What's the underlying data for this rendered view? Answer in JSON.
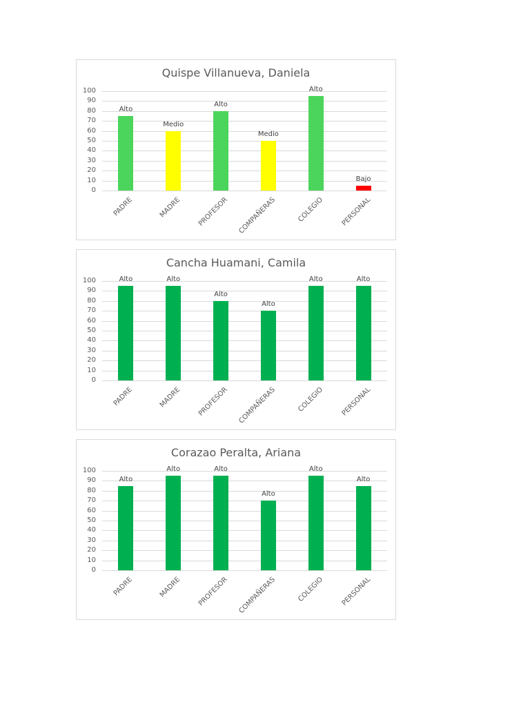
{
  "chart_data": [
    {
      "type": "bar",
      "title": "Quispe Villanueva, Daniela",
      "categories": [
        "PADRE",
        "MADRE",
        "PROFESOR",
        "COMPAÑERAS",
        "COLEGIO",
        "PERSONAL"
      ],
      "values": [
        75,
        60,
        80,
        50,
        95,
        5
      ],
      "data_labels": [
        "Alto",
        "Medio",
        "Alto",
        "Medio",
        "Alto",
        "Bajo"
      ],
      "bar_colors": [
        "#4CD55C",
        "#FFFF00",
        "#4CD55C",
        "#FFFF00",
        "#4CD55C",
        "#FF0000"
      ],
      "xlabel": "",
      "ylabel": "",
      "ylim": [
        0,
        100
      ],
      "yticks": [
        0,
        10,
        20,
        30,
        40,
        50,
        60,
        70,
        80,
        90,
        100
      ],
      "grid": true,
      "legend": "none"
    },
    {
      "type": "bar",
      "title": "Cancha Huamani, Camila",
      "categories": [
        "PADRE",
        "MADRE",
        "PROFESOR",
        "COMPAÑERAS",
        "COLEGIO",
        "PERSONAL"
      ],
      "values": [
        95,
        95,
        80,
        70,
        95,
        95
      ],
      "data_labels": [
        "Alto",
        "Alto",
        "Alto",
        "Alto",
        "Alto",
        "Alto"
      ],
      "bar_colors": [
        "#00B050",
        "#00B050",
        "#00B050",
        "#00B050",
        "#00B050",
        "#00B050"
      ],
      "xlabel": "",
      "ylabel": "",
      "ylim": [
        0,
        100
      ],
      "yticks": [
        0,
        10,
        20,
        30,
        40,
        50,
        60,
        70,
        80,
        90,
        100
      ],
      "grid": true,
      "legend": "none"
    },
    {
      "type": "bar",
      "title": "Corazao Peralta, Ariana",
      "categories": [
        "PADRE",
        "MADRE",
        "PROFESOR",
        "COMPAÑERAS",
        "COLEGIO",
        "PERSONAL"
      ],
      "values": [
        85,
        95,
        95,
        70,
        95,
        85
      ],
      "data_labels": [
        "Alto",
        "Alto",
        "Alto",
        "Alto",
        "Alto",
        "Alto"
      ],
      "bar_colors": [
        "#00B050",
        "#00B050",
        "#00B050",
        "#00B050",
        "#00B050",
        "#00B050"
      ],
      "xlabel": "",
      "ylabel": "",
      "ylim": [
        0,
        100
      ],
      "yticks": [
        0,
        10,
        20,
        30,
        40,
        50,
        60,
        70,
        80,
        90,
        100
      ],
      "grid": true,
      "legend": "none"
    }
  ],
  "charts": [
    {
      "title": "Quispe Villanueva, Daniela"
    },
    {
      "title": "Cancha Huamani, Camila"
    },
    {
      "title": "Corazao Peralta, Ariana"
    }
  ]
}
